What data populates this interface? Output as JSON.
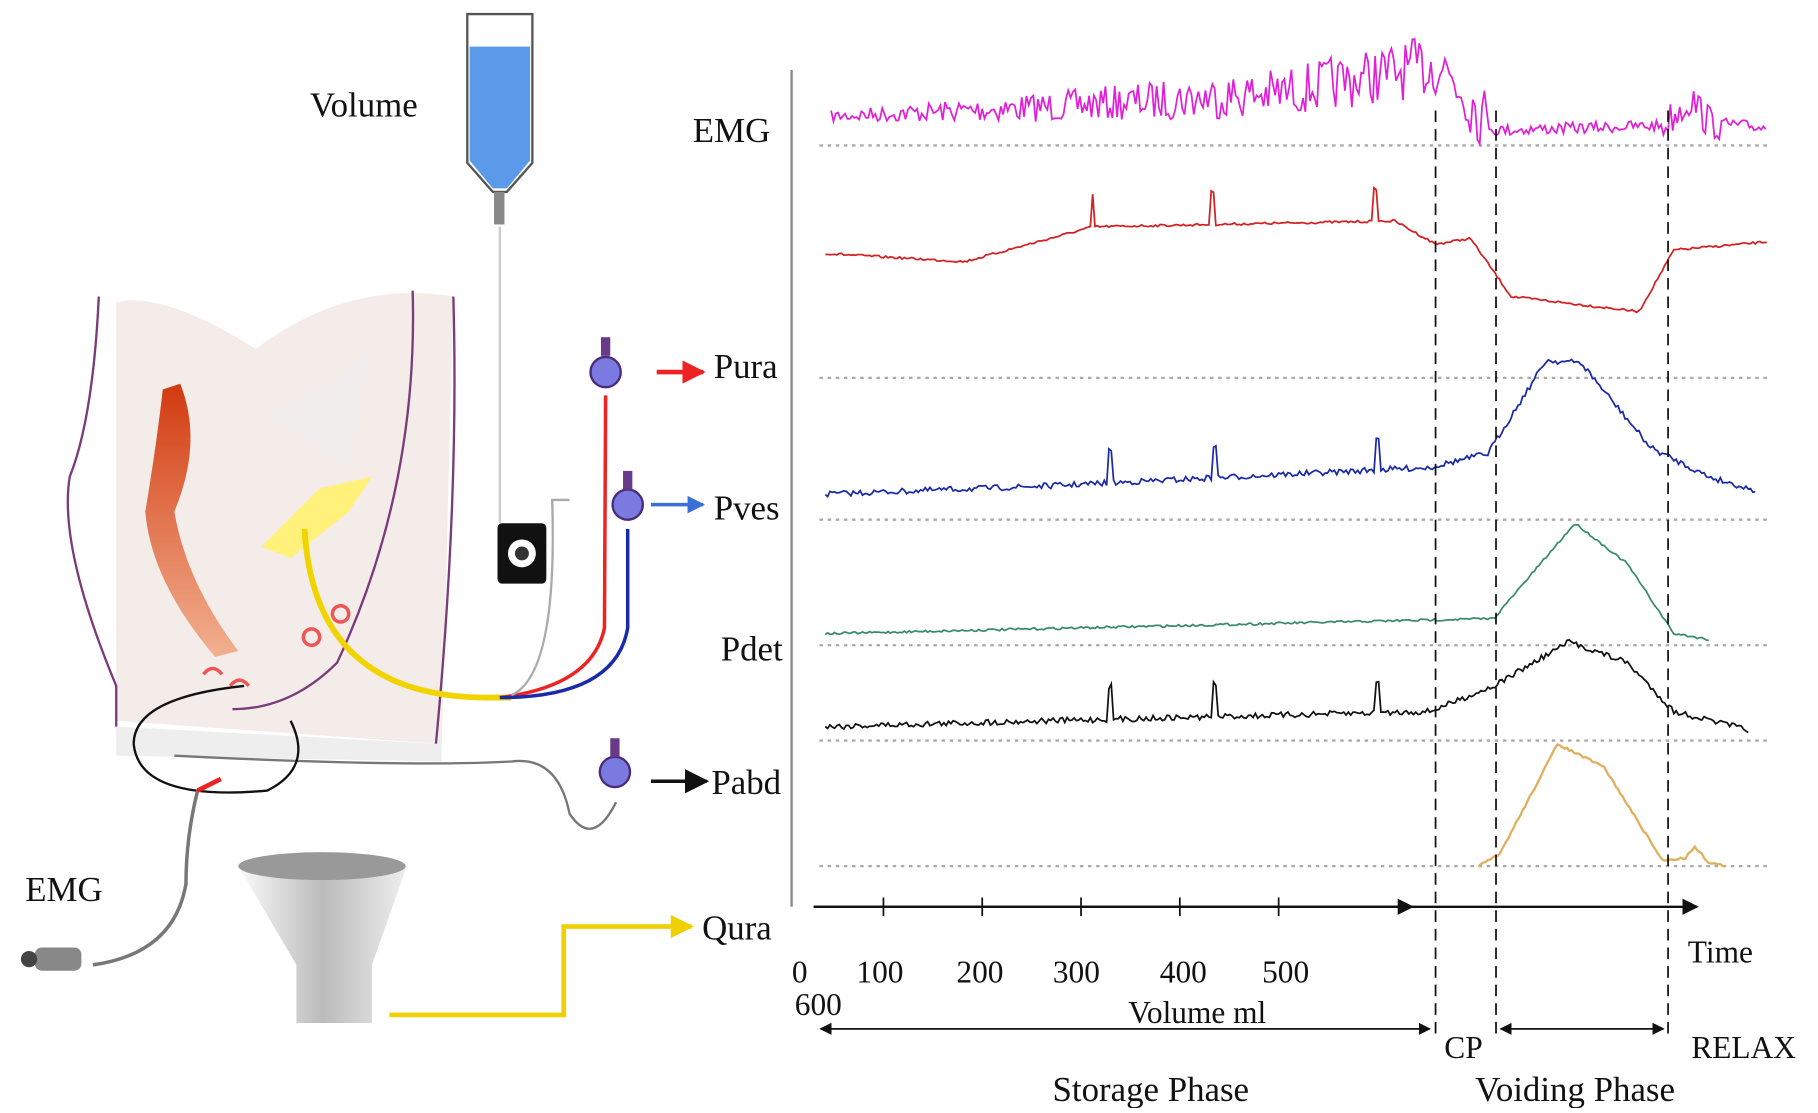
{
  "anatomy": {
    "volume": "Volume",
    "emg": "EMG"
  },
  "channels": {
    "emg": "EMG",
    "pura": "Pura",
    "pves": "Pves",
    "pdet": "Pdet",
    "pabd": "Pabd",
    "qura": "Qura"
  },
  "axis": {
    "ticks": [
      "0",
      "100",
      "200",
      "300",
      "400",
      "500",
      "600"
    ],
    "volume_label": "Volume ml",
    "time_label": "Time"
  },
  "phases": {
    "storage": "Storage Phase",
    "cp": "CP",
    "voiding": "Voiding Phase",
    "relax": "RELAX"
  }
}
